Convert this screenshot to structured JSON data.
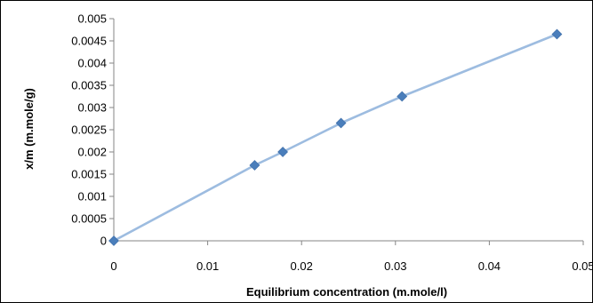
{
  "chart_data": {
    "type": "line",
    "title": "",
    "xlabel": "Equilibrium concentration (m.mole/l)",
    "ylabel": "x/m (m.mole/g)",
    "xlim": [
      0,
      0.05
    ],
    "ylim": [
      0,
      0.005
    ],
    "x_ticks": [
      "0",
      "0.01",
      "0.02",
      "0.03",
      "0.04",
      "0.05"
    ],
    "y_ticks": [
      "0",
      "0.0005",
      "0.001",
      "0.0015",
      "0.002",
      "0.0025",
      "0.003",
      "0.0035",
      "0.004",
      "0.0045",
      "0.005"
    ],
    "grid": false,
    "legend": "none",
    "series": [
      {
        "x": [
          0,
          0.015,
          0.018,
          0.0242,
          0.0307,
          0.0472
        ],
        "y": [
          0,
          0.0017,
          0.002,
          0.00265,
          0.00325,
          0.00465
        ],
        "line_color": "#9dbce0",
        "marker": "diamond",
        "marker_color": "#4a7ebb"
      }
    ]
  }
}
